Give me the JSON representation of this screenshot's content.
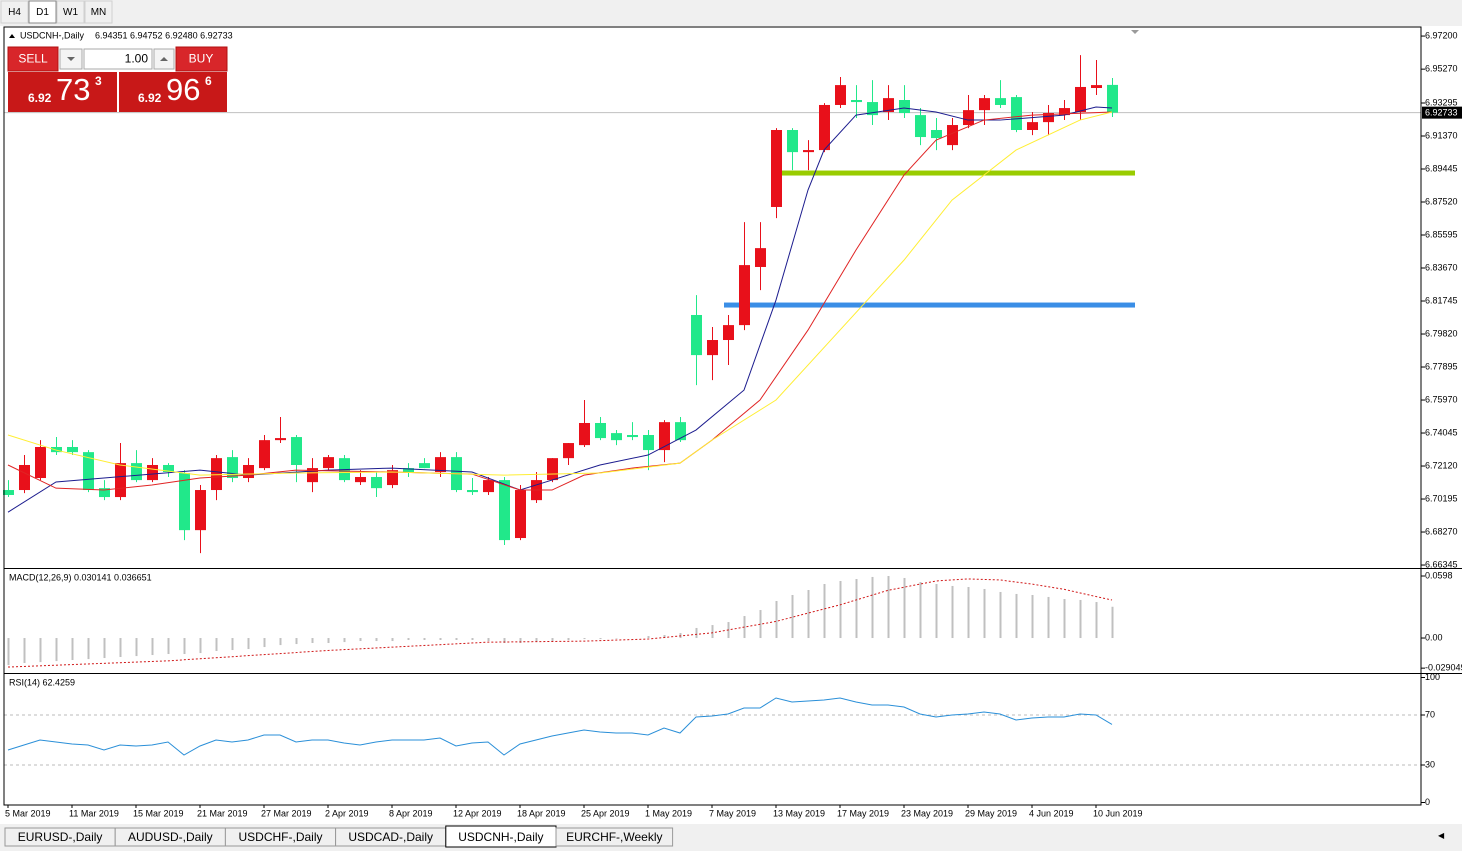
{
  "toolbar": {
    "timeframes": [
      "H4",
      "D1",
      "W1",
      "MN"
    ],
    "active": 1
  },
  "trade_panel": {
    "sell_label": "SELL",
    "buy_label": "BUY",
    "lot": "1.00",
    "sell": {
      "big": "6.92",
      "pips": "73",
      "point": "3"
    },
    "buy": {
      "big": "6.92",
      "pips": "96",
      "point": "6"
    }
  },
  "chart_data": [
    {
      "type": "candlestick",
      "title": "USDCNH-,Daily",
      "ohlc_text": "6.94351 6.94752 6.92480 6.92733",
      "up_color": "#e8101a",
      "down_color": "#21e88a",
      "categories": [
        "5 Mar 2019",
        null,
        null,
        null,
        "11 Mar 2019",
        null,
        null,
        null,
        "15 Mar 2019",
        null,
        null,
        null,
        "21 Mar 2019",
        null,
        null,
        null,
        "27 Mar 2019",
        null,
        null,
        null,
        "2 Apr 2019",
        null,
        null,
        null,
        "8 Apr 2019",
        null,
        null,
        null,
        "12 Apr 2019",
        null,
        null,
        null,
        "18 Apr 2019",
        null,
        null,
        null,
        "25 Apr 2019",
        null,
        null,
        null,
        "1 May 2019",
        null,
        null,
        null,
        "7 May 2019",
        null,
        null,
        null,
        "13 May 2019",
        null,
        null,
        null,
        "17 May 2019",
        null,
        null,
        null,
        "23 May 2019",
        null,
        null,
        null,
        "29 May 2019",
        null,
        null,
        null,
        "4 Jun 2019",
        null,
        null,
        null,
        "10 Jun 2019",
        null
      ],
      "open": [
        6.7072,
        6.7072,
        6.7142,
        6.7323,
        6.7323,
        6.7293,
        6.7083,
        6.7031,
        6.7229,
        6.713,
        6.7218,
        6.7171,
        6.6838,
        6.7072,
        6.7264,
        6.7142,
        6.72,
        6.7363,
        6.7381,
        6.7118,
        6.72,
        6.7258,
        6.7118,
        6.7148,
        6.7101,
        6.72,
        6.7229,
        6.7177,
        6.7264,
        6.7072,
        6.706,
        6.713,
        6.6792,
        6.7013,
        6.713,
        6.7258,
        6.7334,
        6.7463,
        6.7404,
        6.7393,
        6.7393,
        6.7305,
        6.7468,
        6.8093,
        6.7859,
        6.7947,
        6.8034,
        6.8373,
        6.8723,
        6.9172,
        6.9043,
        6.9055,
        6.9318,
        6.9347,
        6.9335,
        6.9277,
        6.9347,
        6.9259,
        6.9172,
        6.9084,
        6.9201,
        6.9288,
        6.9358,
        6.9364,
        6.9172,
        6.9218,
        6.9259,
        6.9277,
        6.9417,
        6.94351
      ],
      "high": [
        6.713,
        6.7276,
        6.7363,
        6.7381,
        6.7363,
        6.7305,
        6.713,
        6.7346,
        6.7305,
        6.7258,
        6.7229,
        6.7188,
        6.7101,
        6.7276,
        6.7305,
        6.7258,
        6.7393,
        6.7498,
        6.7393,
        6.7258,
        6.7276,
        6.7276,
        6.7188,
        6.7177,
        6.7218,
        6.7229,
        6.7258,
        6.7293,
        6.7293,
        6.7142,
        6.7148,
        6.7148,
        6.7101,
        6.7177,
        6.7258,
        6.7346,
        6.7597,
        6.7498,
        6.7422,
        6.7468,
        6.7422,
        6.748,
        6.7498,
        6.8209,
        6.8023,
        6.8093,
        6.8635,
        6.8635,
        6.9183,
        6.9183,
        6.9113,
        6.9329,
        6.9481,
        6.9434,
        6.9463,
        6.9434,
        6.9434,
        6.93,
        6.9242,
        6.9242,
        6.9376,
        6.9376,
        6.9463,
        6.9376,
        6.9277,
        6.9318,
        6.9347,
        6.9609,
        6.958,
        6.94752
      ],
      "low": [
        6.7031,
        6.7054,
        6.713,
        6.7276,
        6.7276,
        6.706,
        6.7013,
        6.7013,
        6.7118,
        6.7118,
        6.7148,
        6.678,
        6.6704,
        6.7013,
        6.7118,
        6.7118,
        6.7188,
        6.7346,
        6.7118,
        6.706,
        6.7188,
        6.7118,
        6.7101,
        6.7031,
        6.7083,
        6.7148,
        6.72,
        6.7148,
        6.706,
        6.7043,
        6.7043,
        6.6751,
        6.678,
        6.6996,
        6.7118,
        6.7218,
        6.7323,
        6.7363,
        6.7334,
        6.7363,
        6.7188,
        6.7235,
        6.7352,
        6.7684,
        6.7713,
        6.7801,
        6.8005,
        6.8238,
        6.8658,
        6.8938,
        6.8938,
        6.9043,
        6.93,
        6.9242,
        6.9201,
        6.923,
        6.9242,
        6.9084,
        6.9055,
        6.9055,
        6.9183,
        6.9201,
        6.93,
        6.916,
        6.9142,
        6.9142,
        6.923,
        6.923,
        6.9376,
        6.9248
      ],
      "close": [
        6.7043,
        6.7218,
        6.7323,
        6.7293,
        6.7293,
        6.7072,
        6.7031,
        6.7229,
        6.713,
        6.7218,
        6.7177,
        6.6838,
        6.7072,
        6.7258,
        6.7142,
        6.7218,
        6.7363,
        6.7375,
        6.7218,
        6.72,
        6.7264,
        6.713,
        6.7148,
        6.7083,
        6.7188,
        6.7177,
        6.72,
        6.7264,
        6.7072,
        6.706,
        6.713,
        6.678,
        6.7072,
        6.713,
        6.7258,
        6.7346,
        6.7463,
        6.7375,
        6.7363,
        6.7381,
        6.7305,
        6.7468,
        6.7363,
        6.7859,
        6.7947,
        6.8034,
        6.8384,
        6.8483,
        6.9172,
        6.9043,
        6.9055,
        6.9318,
        6.9434,
        6.9335,
        6.9259,
        6.9358,
        6.9271,
        6.9131,
        6.9125,
        6.9201,
        6.9288,
        6.9358,
        6.9318,
        6.9172,
        6.9218,
        6.9271,
        6.93,
        6.9423,
        6.9434,
        6.92733
      ],
      "overlays": [
        {
          "color": "#1c1c8e",
          "x": [
            0,
            3,
            6,
            12,
            15,
            20,
            24,
            29,
            32,
            34,
            37,
            40,
            43,
            46,
            48,
            50,
            51,
            53,
            56,
            58,
            60,
            62,
            66,
            68,
            69
          ],
          "values": [
            6.6943,
            6.7119,
            6.7142,
            6.7188,
            6.7159,
            6.7188,
            6.72,
            6.7177,
            6.7072,
            6.713,
            6.7218,
            6.7276,
            6.7422,
            6.7655,
            6.818,
            6.8822,
            6.9055,
            6.9259,
            6.93,
            6.9277,
            6.923,
            6.923,
            6.9259,
            6.9306,
            6.93
          ]
        },
        {
          "color": "#e02424",
          "x": [
            0,
            3,
            6,
            9,
            12,
            15,
            18,
            24,
            29,
            32,
            34,
            36,
            39,
            42,
            44,
            47,
            50,
            53,
            56,
            58,
            61,
            64,
            69
          ],
          "values": [
            6.7218,
            6.7083,
            6.7072,
            6.7101,
            6.7142,
            6.7159,
            6.7188,
            6.7177,
            6.7165,
            6.7072,
            6.7072,
            6.7159,
            6.72,
            6.7229,
            6.7363,
            6.7597,
            6.8005,
            6.8472,
            6.8909,
            6.9113,
            6.923,
            6.9259,
            6.9277
          ]
        },
        {
          "color": "#ffee33",
          "x": [
            0,
            3,
            7,
            12,
            18,
            24,
            31,
            37,
            42,
            44,
            48,
            52,
            56,
            59,
            63,
            67,
            69
          ],
          "values": [
            6.7393,
            6.7305,
            6.7218,
            6.7159,
            6.7171,
            6.7177,
            6.7159,
            6.7171,
            6.7229,
            6.7363,
            6.7597,
            6.8005,
            6.8413,
            6.8763,
            6.9055,
            6.923,
            6.9277
          ]
        }
      ],
      "levels": [
        {
          "value": 6.8921,
          "color": "#99cc00",
          "start": 48
        },
        {
          "value": 6.8151,
          "color": "#3a8ee6",
          "start": 45
        }
      ],
      "last_price": 6.92733,
      "ylim": [
        6.6623,
        6.9767
      ],
      "yticks": [
        {
          "value": 6.972,
          "label": "6.97200"
        },
        {
          "value": 6.9527,
          "label": "6.95270"
        },
        6.93295,
        {
          "value": 6.9137,
          "label": "6.91370"
        },
        6.89445,
        {
          "value": 6.8752,
          "label": "6.87520"
        },
        6.85595,
        {
          "value": 6.8367,
          "label": "6.83670"
        },
        6.81745,
        {
          "value": 6.7982,
          "label": "6.79820"
        },
        6.77895,
        {
          "value": 6.7597,
          "label": "6.75970"
        },
        6.74045,
        {
          "value": 6.7212,
          "label": "6.72120"
        },
        6.70195,
        {
          "value": 6.6827,
          "label": "6.68270"
        },
        6.66345
      ]
    },
    {
      "type": "macd",
      "title": "MACD(12,26,9) 0.030141 0.036651",
      "color": "#c0c0c0",
      "signal_color": "#d01818",
      "values": [
        -0.0261,
        -0.0241,
        -0.0232,
        -0.0222,
        -0.0212,
        -0.0203,
        -0.0193,
        -0.0183,
        -0.0174,
        -0.0164,
        -0.0154,
        -0.0154,
        -0.0145,
        -0.0125,
        -0.0116,
        -0.0106,
        -0.0087,
        -0.0068,
        -0.0058,
        -0.0048,
        -0.0048,
        -0.0039,
        -0.0029,
        -0.0029,
        -0.0029,
        -0.0019,
        -0.0019,
        -0.0019,
        -0.0019,
        -0.0019,
        -0.0029,
        -0.0048,
        -0.0048,
        -0.0039,
        -0.0029,
        -0.0019,
        -0.001,
        -0.001,
        -0.0005,
        0,
        0.0019,
        0.0029,
        0.0048,
        0.0097,
        0.0125,
        0.0154,
        0.0212,
        0.027,
        0.0357,
        0.0415,
        0.0463,
        0.0521,
        0.055,
        0.0569,
        0.0589,
        0.0598,
        0.0579,
        0.054,
        0.0521,
        0.0502,
        0.0492,
        0.0473,
        0.0444,
        0.0425,
        0.0415,
        0.0396,
        0.0376,
        0.0367,
        0.0347,
        0.030141
      ],
      "signal": {
        "x": [
          0,
          10,
          20,
          30,
          36,
          40,
          44,
          48,
          52,
          55,
          58,
          60,
          62,
          64,
          66,
          68,
          69
        ],
        "values": [
          -0.028,
          -0.022,
          -0.012,
          -0.004,
          -0.003,
          -0.001,
          0.005,
          0.016,
          0.032,
          0.046,
          0.055,
          0.057,
          0.056,
          0.052,
          0.047,
          0.04,
          0.036651
        ]
      },
      "ylim": [
        -0.0318,
        0.0656
      ],
      "yticks": [
        0.0598,
        {
          "value": 0,
          "label": "0.00"
        },
        -0.029049
      ]
    },
    {
      "type": "line",
      "title": "RSI(14) 62.4259",
      "color": "#2a8fd8",
      "values": [
        42.0,
        46.0,
        50.0,
        48.4,
        46.8,
        46.0,
        42.0,
        46.0,
        45.2,
        46.0,
        48.4,
        38.0,
        45.2,
        50.0,
        48.4,
        50.0,
        54.0,
        54.0,
        48.4,
        50.0,
        50.0,
        47.6,
        46.0,
        48.4,
        50.0,
        50.0,
        50.0,
        51.6,
        45.2,
        47.6,
        48.4,
        38.0,
        46.8,
        50.0,
        53.2,
        55.6,
        58.0,
        56.4,
        55.6,
        55.6,
        54.0,
        59.6,
        55.6,
        68.4,
        69.2,
        70.8,
        75.6,
        75.6,
        83.6,
        80.4,
        81.2,
        82.0,
        83.6,
        80.4,
        78.0,
        78.0,
        76.4,
        70.8,
        68.4,
        70.0,
        70.8,
        72.4,
        70.8,
        66.0,
        67.6,
        68.4,
        68.4,
        70.8,
        70.0,
        62.4259
      ],
      "levels": [
        30,
        70
      ],
      "ylim": [
        -2,
        102
      ],
      "yticks": [
        100,
        70,
        30,
        0
      ]
    }
  ],
  "tabs": {
    "items": [
      "EURUSD-,Daily",
      "AUDUSD-,Daily",
      "USDCHF-,Daily",
      "USDCAD-,Daily",
      "USDCNH-,Daily",
      "EURCHF-,Weekly"
    ],
    "active": 4
  }
}
